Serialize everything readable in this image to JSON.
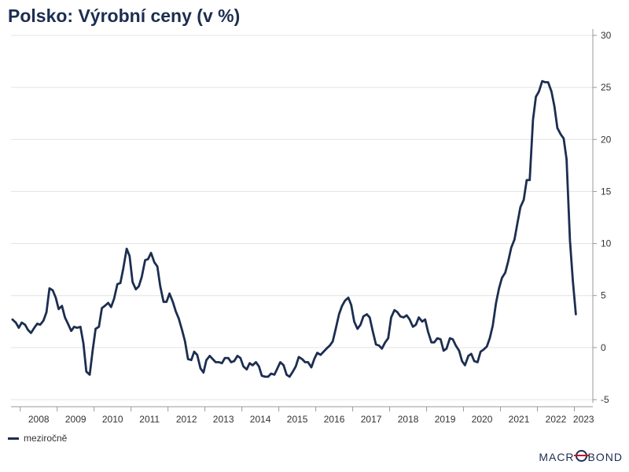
{
  "title": "Polsko: Výrobní ceny (v %)",
  "legend": {
    "label": "meziročně",
    "color": "#1c2e50"
  },
  "brand": {
    "pre": "MACR",
    "post": "BOND"
  },
  "chart_data": {
    "type": "line",
    "title": "Polsko: Výrobní ceny (v %)",
    "xlabel": "",
    "ylabel": "",
    "ylim": [
      -5,
      30
    ],
    "yticks": [
      -5,
      0,
      5,
      10,
      15,
      20,
      25,
      30
    ],
    "xlim": [
      2007.75,
      2023.5
    ],
    "xticks": [
      "2008",
      "2009",
      "2010",
      "2011",
      "2012",
      "2013",
      "2014",
      "2015",
      "2016",
      "2017",
      "2018",
      "2019",
      "2020",
      "2021",
      "2022",
      "2023"
    ],
    "grid": "horizontal",
    "legend_position": "bottom-left",
    "series": [
      {
        "name": "meziročně",
        "color": "#1c2e50",
        "points": [
          [
            2007.79,
            2.7
          ],
          [
            2007.88,
            2.4
          ],
          [
            2007.96,
            1.9
          ],
          [
            2008.04,
            2.4
          ],
          [
            2008.13,
            2.2
          ],
          [
            2008.21,
            1.7
          ],
          [
            2008.29,
            1.4
          ],
          [
            2008.38,
            1.9
          ],
          [
            2008.46,
            2.3
          ],
          [
            2008.54,
            2.2
          ],
          [
            2008.63,
            2.6
          ],
          [
            2008.71,
            3.4
          ],
          [
            2008.79,
            5.7
          ],
          [
            2008.88,
            5.5
          ],
          [
            2008.96,
            4.8
          ],
          [
            2009.04,
            3.7
          ],
          [
            2009.13,
            4.0
          ],
          [
            2009.21,
            2.9
          ],
          [
            2009.29,
            2.3
          ],
          [
            2009.38,
            1.6
          ],
          [
            2009.46,
            2.0
          ],
          [
            2009.54,
            1.9
          ],
          [
            2009.63,
            2.0
          ],
          [
            2009.71,
            0.4
          ],
          [
            2009.79,
            -2.3
          ],
          [
            2009.88,
            -2.6
          ],
          [
            2009.96,
            -0.3
          ],
          [
            2010.04,
            1.8
          ],
          [
            2010.13,
            2.0
          ],
          [
            2010.21,
            3.8
          ],
          [
            2010.29,
            4.0
          ],
          [
            2010.38,
            4.3
          ],
          [
            2010.46,
            3.9
          ],
          [
            2010.54,
            4.7
          ],
          [
            2010.63,
            6.1
          ],
          [
            2010.71,
            6.2
          ],
          [
            2010.79,
            7.6
          ],
          [
            2010.88,
            9.5
          ],
          [
            2010.96,
            8.8
          ],
          [
            2011.04,
            6.3
          ],
          [
            2011.13,
            5.6
          ],
          [
            2011.21,
            5.9
          ],
          [
            2011.29,
            6.8
          ],
          [
            2011.38,
            8.4
          ],
          [
            2011.46,
            8.5
          ],
          [
            2011.54,
            9.1
          ],
          [
            2011.63,
            8.2
          ],
          [
            2011.71,
            7.8
          ],
          [
            2011.79,
            5.9
          ],
          [
            2011.88,
            4.4
          ],
          [
            2011.96,
            4.4
          ],
          [
            2012.04,
            5.2
          ],
          [
            2012.13,
            4.4
          ],
          [
            2012.21,
            3.5
          ],
          [
            2012.29,
            2.8
          ],
          [
            2012.38,
            1.7
          ],
          [
            2012.46,
            0.6
          ],
          [
            2012.54,
            -1.1
          ],
          [
            2012.63,
            -1.2
          ],
          [
            2012.71,
            -0.4
          ],
          [
            2012.79,
            -0.7
          ],
          [
            2012.88,
            -2.0
          ],
          [
            2012.96,
            -2.4
          ],
          [
            2013.04,
            -1.2
          ],
          [
            2013.13,
            -0.8
          ],
          [
            2013.21,
            -1.1
          ],
          [
            2013.29,
            -1.4
          ],
          [
            2013.38,
            -1.4
          ],
          [
            2013.46,
            -1.5
          ],
          [
            2013.54,
            -1.0
          ],
          [
            2013.63,
            -1.0
          ],
          [
            2013.71,
            -1.4
          ],
          [
            2013.79,
            -1.3
          ],
          [
            2013.88,
            -0.8
          ],
          [
            2013.96,
            -1.0
          ],
          [
            2014.04,
            -1.8
          ],
          [
            2014.13,
            -2.1
          ],
          [
            2014.21,
            -1.5
          ],
          [
            2014.29,
            -1.7
          ],
          [
            2014.38,
            -1.4
          ],
          [
            2014.46,
            -1.8
          ],
          [
            2014.54,
            -2.7
          ],
          [
            2014.63,
            -2.8
          ],
          [
            2014.71,
            -2.8
          ],
          [
            2014.79,
            -2.5
          ],
          [
            2014.88,
            -2.6
          ],
          [
            2014.96,
            -2.0
          ],
          [
            2015.04,
            -1.4
          ],
          [
            2015.13,
            -1.7
          ],
          [
            2015.21,
            -2.6
          ],
          [
            2015.29,
            -2.8
          ],
          [
            2015.38,
            -2.3
          ],
          [
            2015.46,
            -1.8
          ],
          [
            2015.54,
            -0.9
          ],
          [
            2015.63,
            -1.1
          ],
          [
            2015.71,
            -1.4
          ],
          [
            2015.79,
            -1.4
          ],
          [
            2015.88,
            -1.9
          ],
          [
            2015.96,
            -1.1
          ],
          [
            2016.04,
            -0.5
          ],
          [
            2016.13,
            -0.7
          ],
          [
            2016.21,
            -0.4
          ],
          [
            2016.29,
            -0.1
          ],
          [
            2016.38,
            0.2
          ],
          [
            2016.46,
            0.6
          ],
          [
            2016.54,
            1.8
          ],
          [
            2016.63,
            3.2
          ],
          [
            2016.71,
            4.0
          ],
          [
            2016.79,
            4.5
          ],
          [
            2016.88,
            4.8
          ],
          [
            2016.96,
            4.1
          ],
          [
            2017.04,
            2.5
          ],
          [
            2017.13,
            1.8
          ],
          [
            2017.21,
            2.2
          ],
          [
            2017.29,
            3.0
          ],
          [
            2017.38,
            3.2
          ],
          [
            2017.46,
            2.9
          ],
          [
            2017.54,
            1.6
          ],
          [
            2017.63,
            0.3
          ],
          [
            2017.71,
            0.2
          ],
          [
            2017.79,
            -0.1
          ],
          [
            2017.88,
            0.5
          ],
          [
            2017.96,
            0.9
          ],
          [
            2018.04,
            2.9
          ],
          [
            2018.13,
            3.6
          ],
          [
            2018.21,
            3.4
          ],
          [
            2018.29,
            3.0
          ],
          [
            2018.38,
            2.9
          ],
          [
            2018.46,
            3.1
          ],
          [
            2018.54,
            2.7
          ],
          [
            2018.63,
            2.0
          ],
          [
            2018.71,
            2.2
          ],
          [
            2018.79,
            2.9
          ],
          [
            2018.88,
            2.5
          ],
          [
            2018.96,
            2.7
          ],
          [
            2019.04,
            1.5
          ],
          [
            2019.13,
            0.5
          ],
          [
            2019.21,
            0.5
          ],
          [
            2019.29,
            0.9
          ],
          [
            2019.38,
            0.8
          ],
          [
            2019.46,
            -0.3
          ],
          [
            2019.54,
            -0.1
          ],
          [
            2019.63,
            0.9
          ],
          [
            2019.71,
            0.8
          ],
          [
            2019.79,
            0.2
          ],
          [
            2019.88,
            -0.3
          ],
          [
            2019.96,
            -1.3
          ],
          [
            2020.04,
            -1.7
          ],
          [
            2020.13,
            -0.8
          ],
          [
            2020.21,
            -0.6
          ],
          [
            2020.29,
            -1.3
          ],
          [
            2020.38,
            -1.4
          ],
          [
            2020.46,
            -0.4
          ],
          [
            2020.54,
            -0.2
          ],
          [
            2020.63,
            0.1
          ],
          [
            2020.71,
            0.9
          ],
          [
            2020.79,
            2.1
          ],
          [
            2020.88,
            4.3
          ],
          [
            2020.96,
            5.7
          ],
          [
            2021.04,
            6.7
          ],
          [
            2021.13,
            7.2
          ],
          [
            2021.21,
            8.3
          ],
          [
            2021.29,
            9.6
          ],
          [
            2021.38,
            10.4
          ],
          [
            2021.46,
            12.0
          ],
          [
            2021.54,
            13.5
          ],
          [
            2021.63,
            14.2
          ],
          [
            2021.71,
            16.1
          ],
          [
            2021.79,
            16.1
          ],
          [
            2021.88,
            21.9
          ],
          [
            2021.96,
            24.1
          ],
          [
            2022.04,
            24.6
          ],
          [
            2022.13,
            25.6
          ],
          [
            2022.21,
            25.5
          ],
          [
            2022.29,
            25.5
          ],
          [
            2022.38,
            24.6
          ],
          [
            2022.46,
            23.2
          ],
          [
            2022.54,
            21.1
          ],
          [
            2022.63,
            20.5
          ],
          [
            2022.71,
            20.1
          ],
          [
            2022.79,
            18.1
          ],
          [
            2022.88,
            10.3
          ],
          [
            2022.96,
            6.4
          ],
          [
            2023.04,
            3.2
          ]
        ]
      }
    ]
  }
}
